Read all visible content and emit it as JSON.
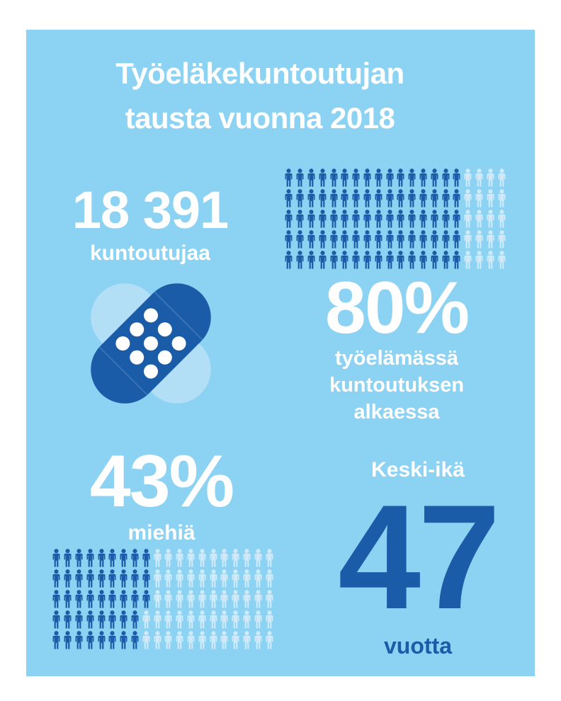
{
  "colors": {
    "panel_background": "#8cd2f2",
    "dark_blue": "#1b5ca8",
    "light_icon": "#cfeaf9",
    "bandaid_light": "#b2dff5",
    "text_white": "#ffffff"
  },
  "title": {
    "line1": "Työeläkekuntoutujan",
    "line2": "tausta vuonna 2018"
  },
  "stats": {
    "rehabilitees": {
      "value": "18 391",
      "label": "kuntoutujaa"
    },
    "working_life": {
      "value": "80%",
      "line1": "työelämässä",
      "line2": "kuntoutuksen",
      "line3": "alkaessa"
    },
    "men": {
      "value": "43%",
      "label": "miehiä"
    },
    "average_age": {
      "heading": "Keski-ikä",
      "value": "47",
      "unit": "vuotta"
    }
  },
  "chart_data": [
    {
      "type": "pictograph",
      "name": "share-in-working-life",
      "label": "80% työelämässä kuntoutuksen alkaessa",
      "percent": 80,
      "rows": 5,
      "cols": 20,
      "filled_per_row": [
        16,
        16,
        16,
        16,
        16
      ],
      "filled_total": 80,
      "icon_total": 100,
      "icon": "person",
      "filled_color": "#1b5ca8",
      "empty_color": "#cfeaf9"
    },
    {
      "type": "pictograph",
      "name": "share-of-men",
      "label": "43% miehiä",
      "percent": 43,
      "rows": 5,
      "cols": 20,
      "filled_per_row": [
        9,
        9,
        9,
        8,
        8
      ],
      "filled_total": 43,
      "icon_total": 100,
      "icon": "person",
      "filled_color": "#1b5ca8",
      "empty_color": "#cfeaf9"
    }
  ]
}
